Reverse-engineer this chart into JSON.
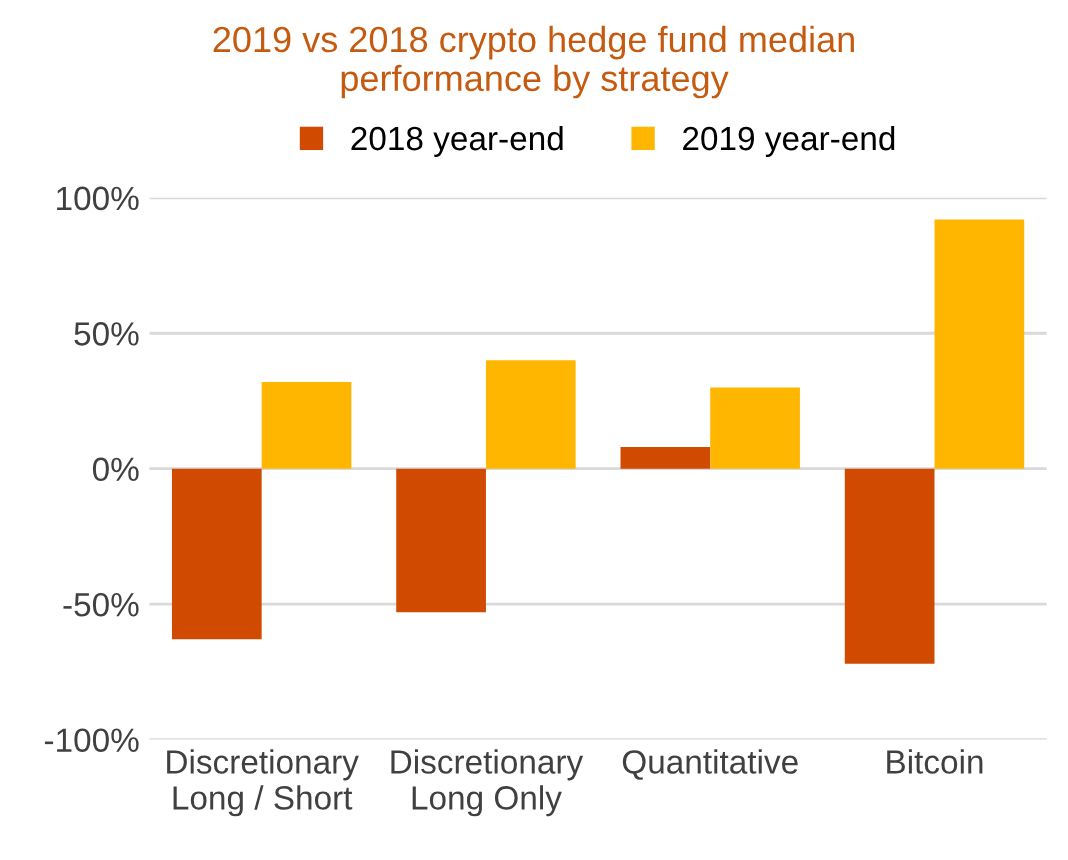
{
  "chart_data": {
    "type": "bar",
    "title": "2019 vs 2018 crypto hedge fund median\nperformance by strategy",
    "categories": [
      "Discretionary\nLong / Short",
      "Discretionary\nLong Only",
      "Quantitative",
      "Bitcoin"
    ],
    "series": [
      {
        "name": "2018 year-end",
        "color": "#d04a02",
        "values": [
          -63,
          -53,
          8,
          -72
        ]
      },
      {
        "name": "2019 year-end",
        "color": "#ffb600",
        "values": [
          32,
          40,
          30,
          92
        ]
      }
    ],
    "ylim": [
      -100,
      100
    ],
    "yticks": [
      {
        "value": -100,
        "label": "-100%"
      },
      {
        "value": -50,
        "label": "-50%"
      },
      {
        "value": 0,
        "label": "0%"
      },
      {
        "value": 50,
        "label": "50%"
      },
      {
        "value": 100,
        "label": "100%"
      }
    ],
    "grid": "y",
    "legend": "top"
  }
}
